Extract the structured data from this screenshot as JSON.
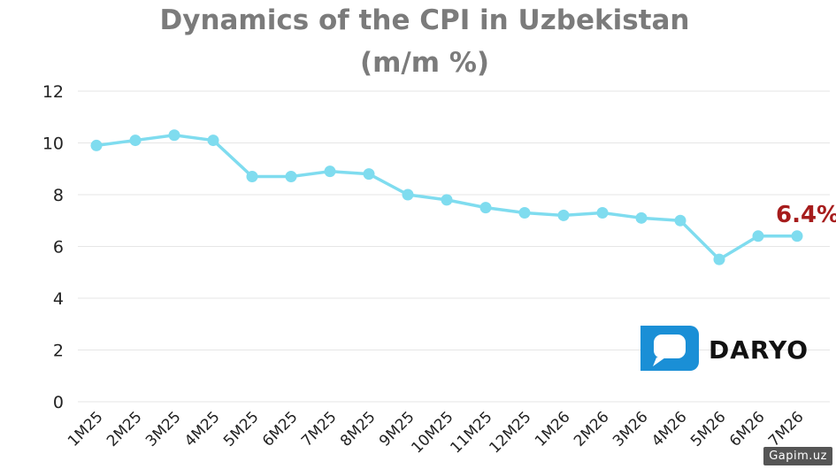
{
  "chart_data": {
    "type": "line",
    "title": "Dynamics of the CPI in Uzbekistan",
    "subtitle": "(m/m %)",
    "xlabel": "",
    "ylabel": "",
    "ylim": [
      0,
      12
    ],
    "yticks": [
      "0",
      "2",
      "4",
      "6",
      "8",
      "10",
      "12"
    ],
    "grid": true,
    "categories": [
      "1M25",
      "2M25",
      "3M25",
      "4M25",
      "5M25",
      "6M25",
      "7M25",
      "8M25",
      "9M25",
      "10M25",
      "11M25",
      "12M25",
      "1M26",
      "2M26",
      "3M26",
      "4M26",
      "5M26",
      "6M26",
      "7M26"
    ],
    "series": [
      {
        "values": [
          9.9,
          10.1,
          10.3,
          10.1,
          8.7,
          8.7,
          8.9,
          8.8,
          8.0,
          7.8,
          7.5,
          7.3,
          7.2,
          7.3,
          7.1,
          7.0,
          5.5,
          6.4,
          6.4
        ]
      }
    ],
    "annotation": {
      "text": "6.4%",
      "category": "7M26"
    }
  },
  "colors": {
    "line": "#7fdcef",
    "annotation": "#a61c1c",
    "grid": "#e6e6e6",
    "title": "#7b7b7b",
    "logo": "#1a8fd6"
  },
  "logo": {
    "text": "DARYO"
  },
  "watermark": {
    "text": "Gapim.uz"
  }
}
